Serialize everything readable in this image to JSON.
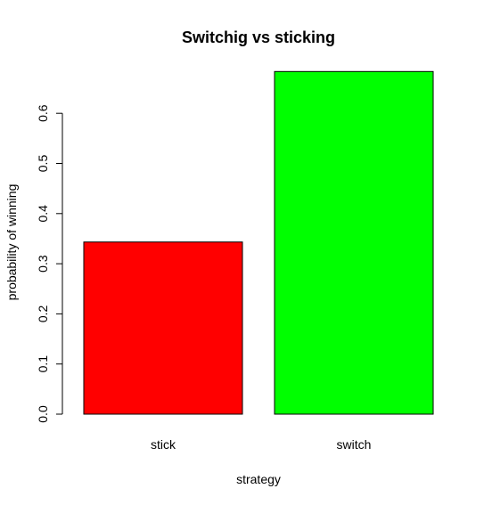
{
  "chart_data": {
    "type": "bar",
    "title": "Switchig vs sticking",
    "xlabel": "strategy",
    "ylabel": "probability of winning",
    "categories": [
      "stick",
      "switch"
    ],
    "values": [
      0.3433,
      0.6833
    ],
    "colors": [
      "#ff0000",
      "#00ff00"
    ],
    "ylim": [
      0,
      0.7
    ],
    "yticks": [
      0.0,
      0.1,
      0.2,
      0.3,
      0.4,
      0.5,
      0.6
    ],
    "ytick_labels": [
      "0.0",
      "0.1",
      "0.2",
      "0.3",
      "0.4",
      "0.5",
      "0.6"
    ],
    "grid": false,
    "legend": "none"
  }
}
